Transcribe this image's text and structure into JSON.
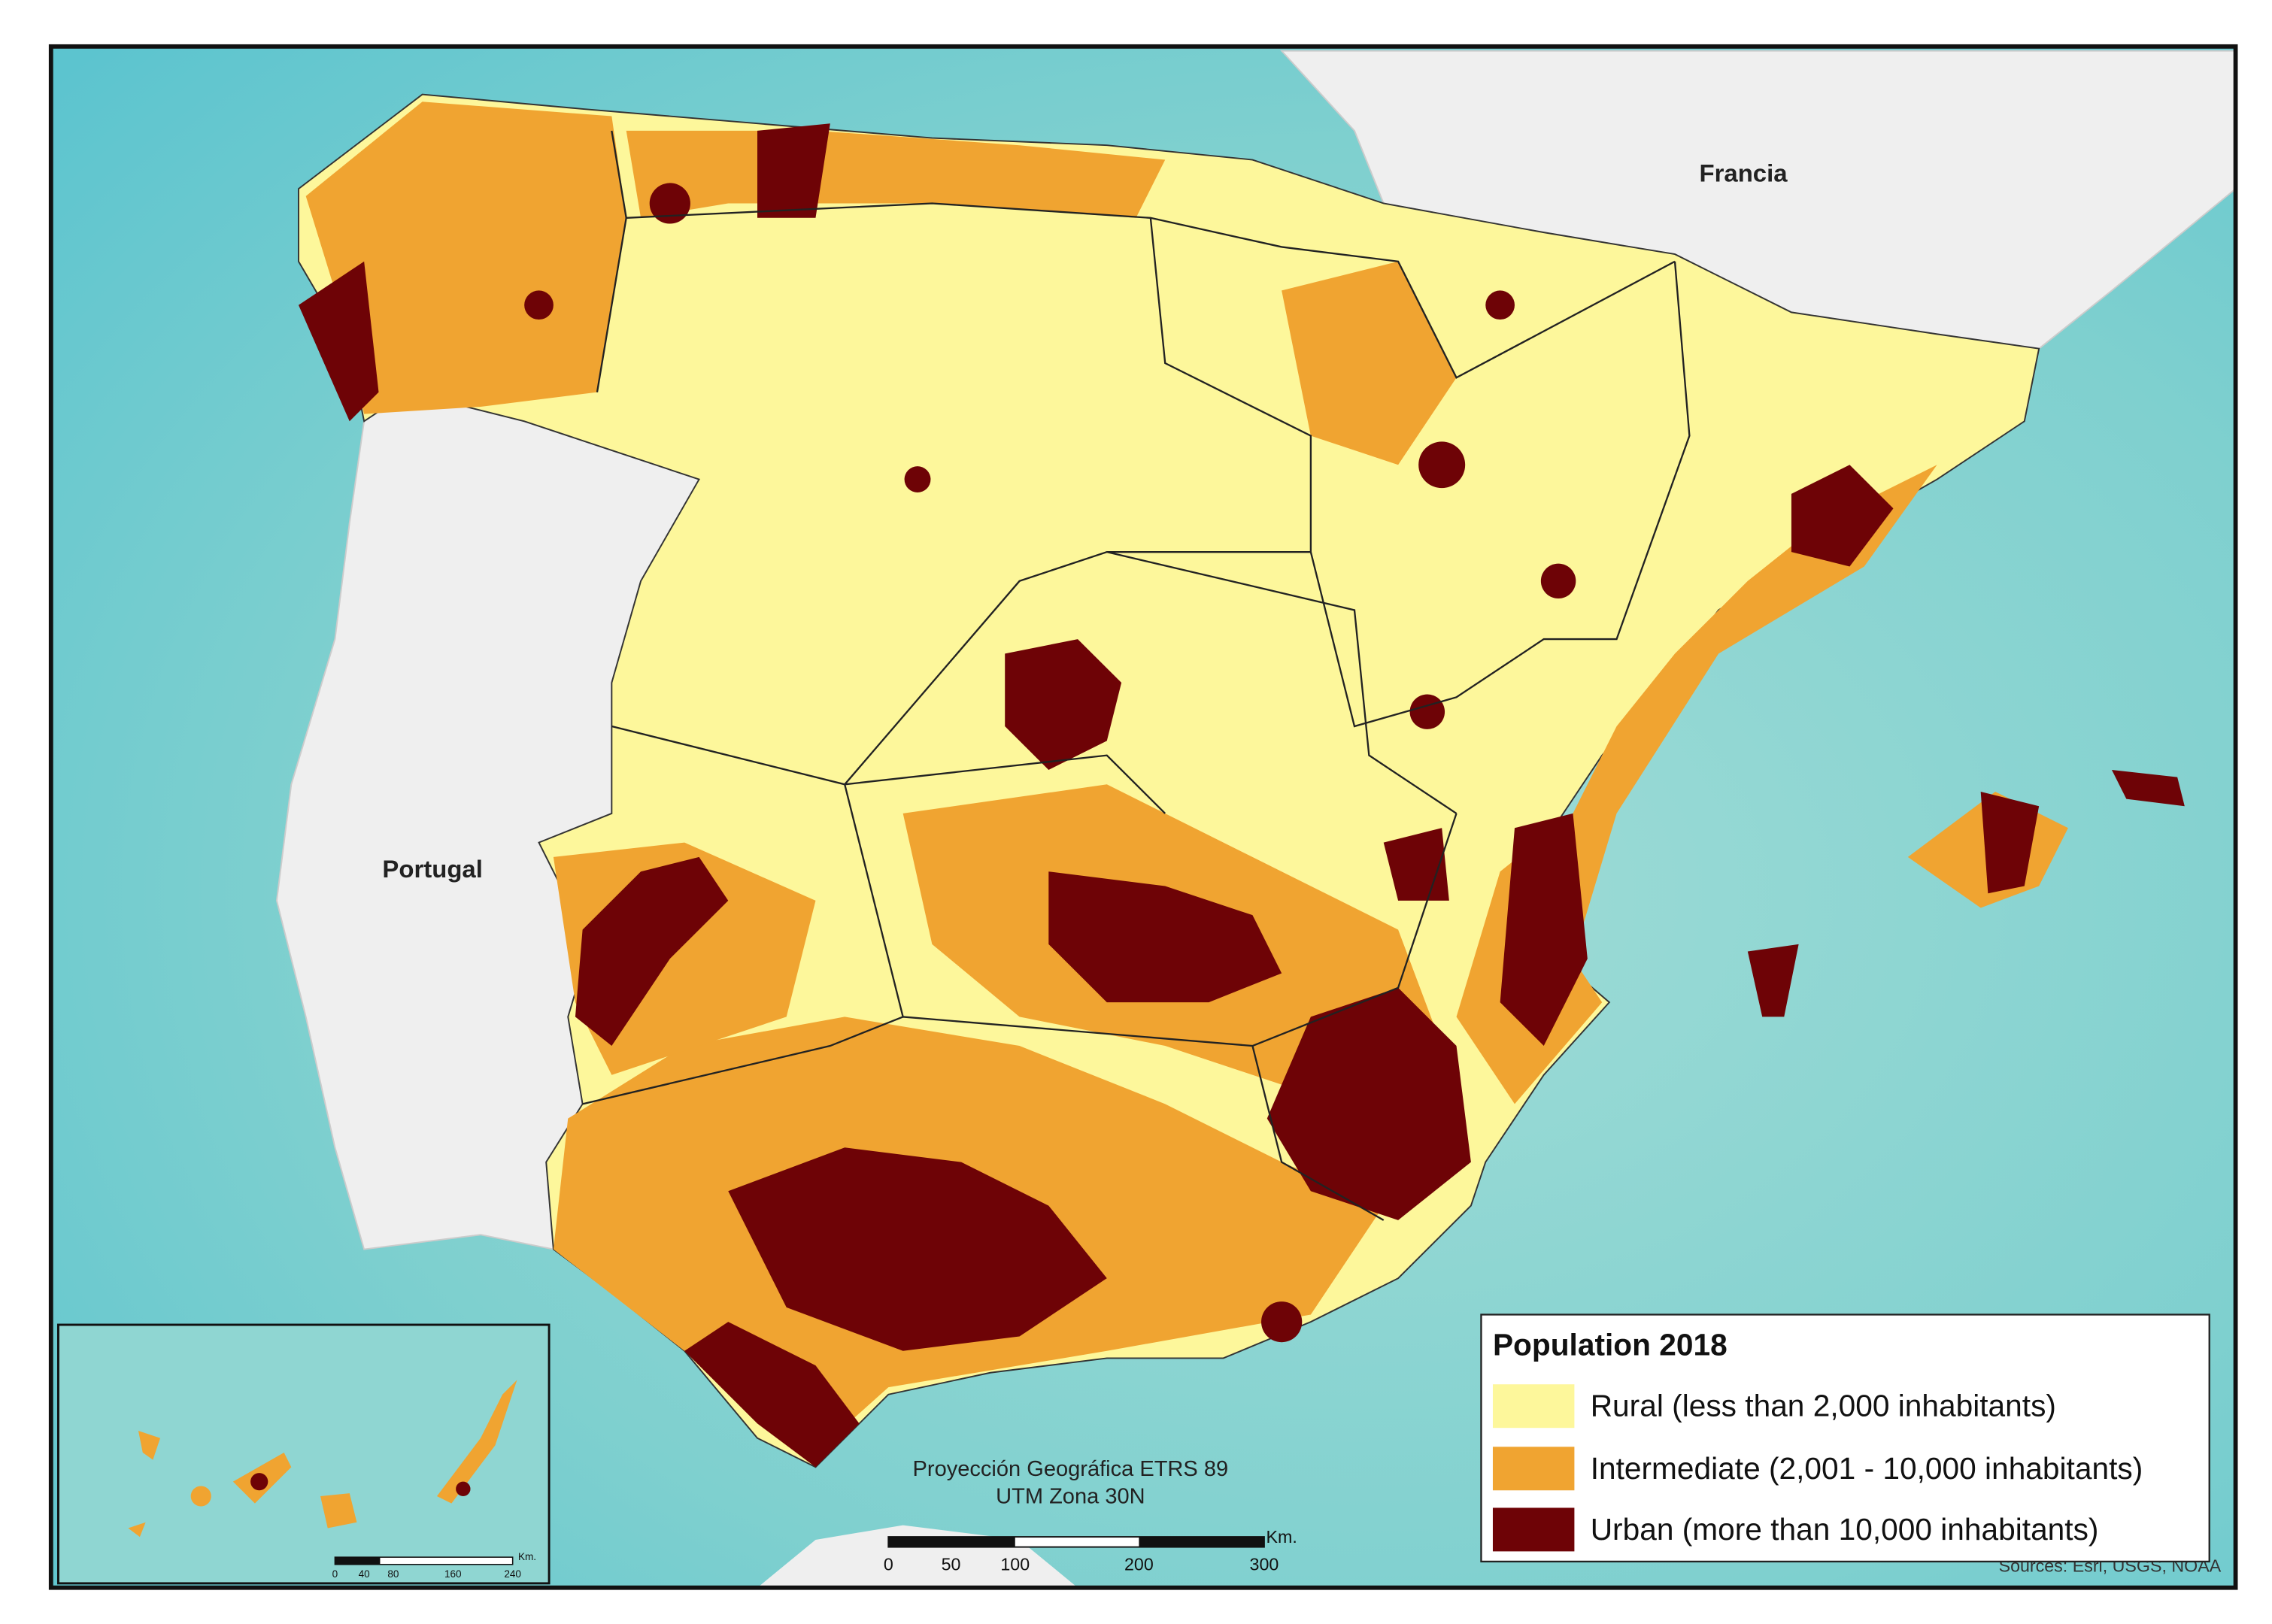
{
  "labels": {
    "france": "Francia",
    "portugal": "Portugal"
  },
  "projection": [
    "Proyección Geográfica ETRS 89",
    "UTM Zona 30N"
  ],
  "scale_bar": {
    "unit": "Km.",
    "ticks": [
      "0",
      "50",
      "100",
      "200",
      "300"
    ]
  },
  "inset_scale_bar": {
    "unit": "Km.",
    "ticks": [
      "0",
      "40",
      "80",
      "160",
      "240"
    ]
  },
  "legend": {
    "title": "Population 2018",
    "items": [
      {
        "label": "Rural (less than 2,000 inhabitants)",
        "color": "#fdf79b"
      },
      {
        "label": "Intermediate (2,001 - 10,000 inhabitants)",
        "color": "#f0a431"
      },
      {
        "label": "Urban (more than 10,000 inhabitants)",
        "color": "#6e0306"
      }
    ]
  },
  "sources": "Sources: Esri, USGS, NOAA"
}
